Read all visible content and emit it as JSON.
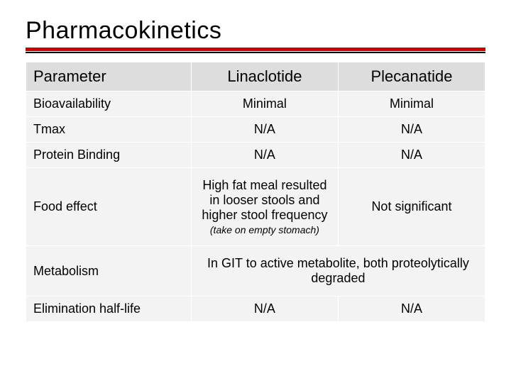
{
  "title": "Pharmacokinetics",
  "colors": {
    "rule_red": "#cc0000",
    "rule_black": "#000000",
    "header_bg": "#dddddd",
    "cell_bg": "#f3f3f3",
    "border": "#ffffff",
    "text": "#000000",
    "page_bg": "#ffffff"
  },
  "typography": {
    "title_fontsize": 34,
    "header_fontsize": 22,
    "cell_fontsize": 18,
    "note_fontsize": 14,
    "font_family": "Verdana"
  },
  "table": {
    "type": "table",
    "columns": [
      "Parameter",
      "Linaclotide",
      "Plecanatide"
    ],
    "column_widths_pct": [
      36,
      32,
      32
    ],
    "column_align": [
      "left",
      "center",
      "center"
    ],
    "rows": [
      {
        "param": "Bioavailability",
        "lin": "Minimal",
        "ple": "Minimal"
      },
      {
        "param": "Tmax",
        "lin": "N/A",
        "ple": "N/A"
      },
      {
        "param": "Protein Binding",
        "lin": "N/A",
        "ple": "N/A"
      },
      {
        "param": "Food effect",
        "lin": "High fat meal resulted in looser stools and higher stool frequency",
        "lin_note": "(take on empty stomach)",
        "ple": "Not significant"
      },
      {
        "param": "Metabolism",
        "merged": "In GIT to active metabolite, both proteolytically degraded"
      },
      {
        "param": "Elimination half-life",
        "lin": "N/A",
        "ple": "N/A"
      }
    ]
  }
}
